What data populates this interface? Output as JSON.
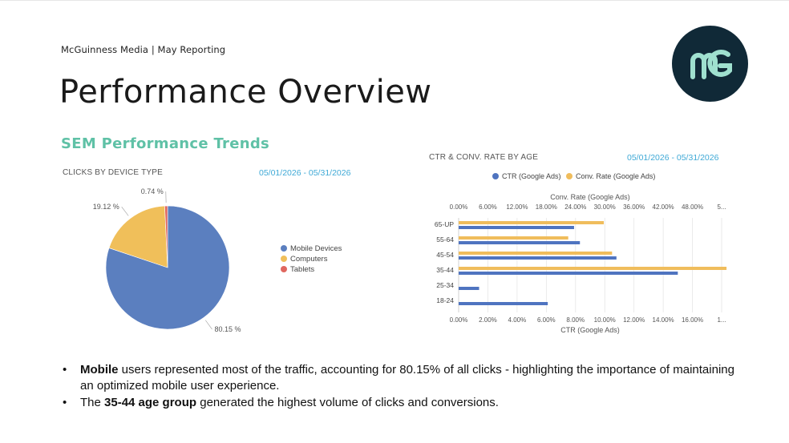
{
  "header": {
    "kicker": "McGuinness Media | May Reporting",
    "title": "Performance Overview",
    "section": "SEM Performance Trends"
  },
  "colors": {
    "mobile": "#5b7fbf",
    "computers": "#f0bf5a",
    "tablets": "#e0675f",
    "ctr": "#4f74c0",
    "conv": "#f0bd5c",
    "accent": "#5fc1a6",
    "date": "#3fa9d6",
    "logo_bg": "#102937"
  },
  "logo": {
    "icon": "mg-monogram-logo"
  },
  "chart_data": [
    {
      "type": "pie",
      "title": "CLICKS BY DEVICE TYPE",
      "date_range": "05/01/2026 - 05/31/2026",
      "slices": [
        {
          "label": "Mobile Devices",
          "value": 80.15,
          "value_label": "80.15 %"
        },
        {
          "label": "Computers",
          "value": 19.12,
          "value_label": "19.12 %"
        },
        {
          "label": "Tablets",
          "value": 0.74,
          "value_label": "0.74 %"
        }
      ],
      "legend": "right"
    },
    {
      "type": "bar",
      "orientation": "horizontal",
      "title": "CTR & CONV. RATE BY AGE",
      "date_range": "05/01/2026 - 05/31/2026",
      "categories": [
        "65-UP",
        "55-64",
        "45-54",
        "35-44",
        "25-34",
        "18-24"
      ],
      "series": [
        {
          "name": "CTR (Google Ads)",
          "axis": "bottom",
          "values": [
            7.9,
            8.3,
            10.8,
            15.0,
            1.4,
            6.1
          ]
        },
        {
          "name": "Conv. Rate (Google Ads)",
          "axis": "top",
          "values": [
            29.8,
            22.5,
            31.5,
            55.0,
            0,
            0
          ]
        }
      ],
      "top_axis": {
        "label": "Conv. Rate (Google Ads)",
        "ticks": [
          "0.00%",
          "6.00%",
          "12.00%",
          "18.00%",
          "24.00%",
          "30.00%",
          "36.00%",
          "42.00%",
          "48.00%",
          "5..."
        ],
        "max": 54
      },
      "bottom_axis": {
        "label": "CTR (Google Ads)",
        "ticks": [
          "0.00%",
          "2.00%",
          "4.00%",
          "6.00%",
          "8.00%",
          "10.00%",
          "12.00%",
          "14.00%",
          "16.00%",
          "1..."
        ],
        "max": 18
      },
      "legend": "top",
      "grid": true
    }
  ],
  "bullets": [
    {
      "bold": "Mobile",
      "text": " users represented most of the traffic, accounting for 80.15% of all clicks - highlighting the importance of maintaining an optimized mobile user experience."
    },
    {
      "pre": "The ",
      "bold": "35-44 age group",
      "text": " generated the highest volume of clicks and conversions."
    }
  ]
}
